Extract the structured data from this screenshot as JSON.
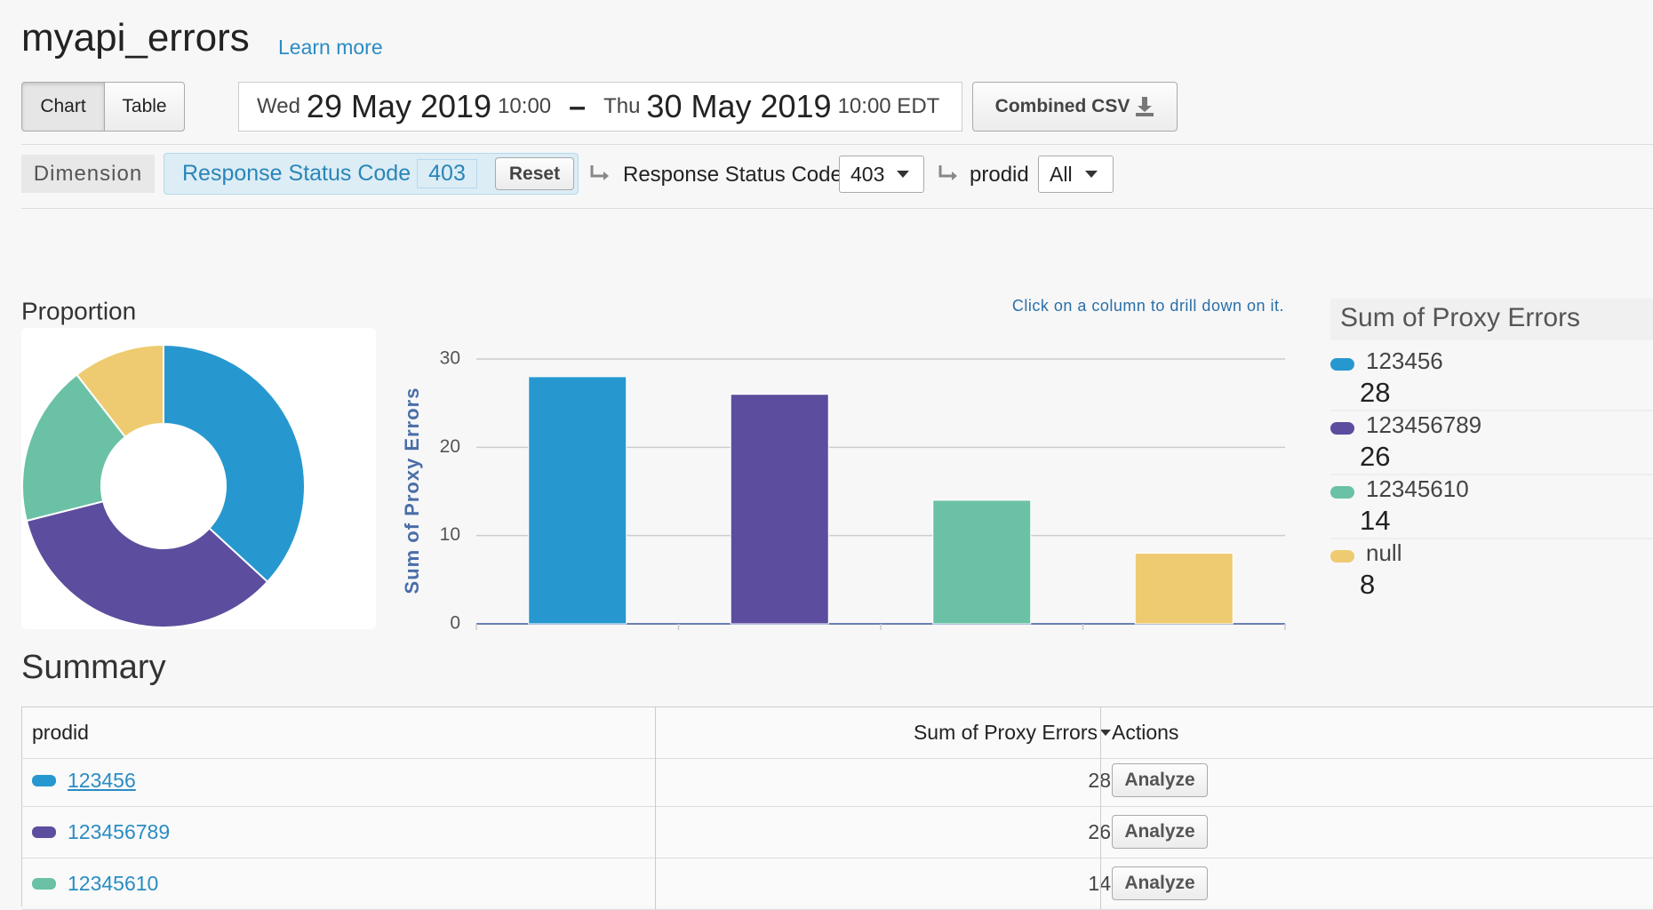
{
  "header": {
    "title": "myapi_errors",
    "learn_more": "Learn more"
  },
  "toolbar": {
    "views": [
      "Chart",
      "Table"
    ],
    "date_range": {
      "start_day": "Wed",
      "start_date": "29 May 2019",
      "start_time": "10:00",
      "separator": "–",
      "end_day": "Thu",
      "end_date": "30 May 2019",
      "end_time": "10:00 EDT"
    },
    "export": "Combined CSV"
  },
  "filters": {
    "dimension_label": "Dimension",
    "active": {
      "name": "Response Status Code",
      "value": "403",
      "reset": "Reset"
    },
    "drilldown": [
      {
        "name": "Response Status Code",
        "selected": "403"
      },
      {
        "name": "prodid",
        "selected": "All"
      }
    ]
  },
  "chart_data": [
    {
      "type": "donut",
      "title": "Proportion",
      "categories": [
        "123456",
        "123456789",
        "12345610",
        "null"
      ],
      "values": [
        28,
        26,
        14,
        8
      ],
      "colors": [
        "#2798cf",
        "#5c4d9e",
        "#6ac1a5",
        "#eecb70"
      ]
    },
    {
      "type": "bar",
      "annotation": "Click on a column to drill down on it.",
      "y_label": "Sum of Proxy Errors",
      "legend_title": "Sum of Proxy Errors",
      "categories": [
        "123456",
        "123456789",
        "12345610",
        "null"
      ],
      "values": [
        28,
        26,
        14,
        8
      ],
      "colors": [
        "#2798cf",
        "#5c4d9e",
        "#6ac1a5",
        "#eecb70"
      ],
      "ylim": [
        0,
        30
      ],
      "yticks": [
        0,
        10,
        20,
        30
      ],
      "grid": true
    }
  ],
  "summary": {
    "title": "Summary",
    "columns": [
      "prodid",
      "Sum of Proxy Errors",
      "Actions"
    ],
    "rows": [
      {
        "prodid": "123456",
        "value": "28",
        "action": "Analyze"
      },
      {
        "prodid": "123456789",
        "value": "26",
        "action": "Analyze"
      },
      {
        "prodid": "12345610",
        "value": "14",
        "action": "Analyze"
      }
    ]
  }
}
